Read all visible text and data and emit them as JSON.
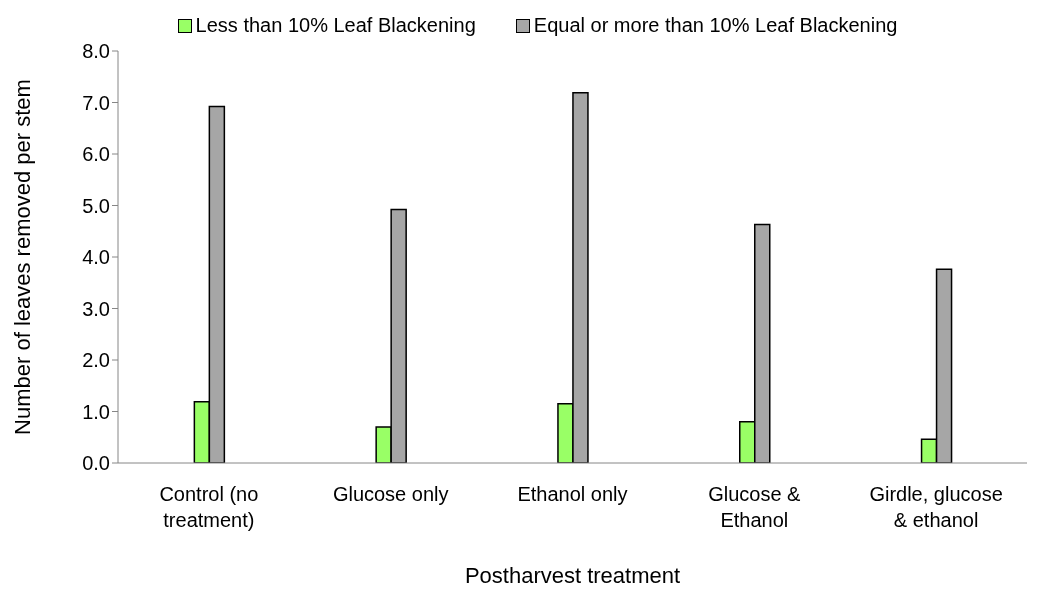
{
  "chart_data": {
    "type": "bar",
    "xlabel": "Postharvest treatment",
    "ylabel": "Number of leaves removed per stem",
    "categories": [
      "Control (no treatment)",
      "Glucose only",
      "Ethanol only",
      "Glucose & Ethanol",
      "Girdle, glucose & ethanol"
    ],
    "series": [
      {
        "name": "Less than 10% Leaf Blackening",
        "color": "#99ff66",
        "values": [
          1.19,
          0.7,
          1.15,
          0.8,
          0.46
        ]
      },
      {
        "name": "Equal or more than 10% Leaf Blackening",
        "color": "#a6a6a6",
        "values": [
          6.92,
          4.92,
          7.19,
          4.63,
          3.76
        ]
      }
    ],
    "ylim": [
      0,
      8
    ],
    "yticks": [
      {
        "value": 0,
        "label": "0.0"
      },
      {
        "value": 1,
        "label": "1.0"
      },
      {
        "value": 2,
        "label": "2.0"
      },
      {
        "value": 3,
        "label": "3.0"
      },
      {
        "value": 4,
        "label": "4.0"
      },
      {
        "value": 5,
        "label": "5.0"
      },
      {
        "value": 6,
        "label": "6.0"
      },
      {
        "value": 7,
        "label": "7.0"
      },
      {
        "value": 8,
        "label": "8.0"
      }
    ],
    "grid": false,
    "legend": "top"
  }
}
